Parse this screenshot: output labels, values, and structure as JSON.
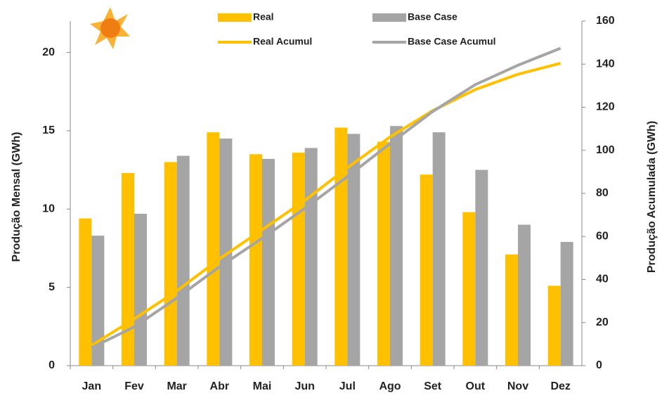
{
  "chart_data": {
    "type": "bar_line",
    "categories": [
      "Jan",
      "Fev",
      "Mar",
      "Abr",
      "Mai",
      "Jun",
      "Jul",
      "Ago",
      "Set",
      "Out",
      "Nov",
      "Dez"
    ],
    "series": [
      {
        "name": "Real",
        "kind": "bar",
        "color": "#ffc000",
        "values": [
          9.4,
          12.3,
          13.0,
          14.9,
          13.5,
          13.6,
          15.2,
          14.3,
          12.2,
          9.8,
          7.1,
          5.1
        ]
      },
      {
        "name": "Base Case",
        "kind": "bar",
        "color": "#a5a5a5",
        "values": [
          8.3,
          9.7,
          13.4,
          14.5,
          13.2,
          13.9,
          14.8,
          15.3,
          14.9,
          12.5,
          9.0,
          7.9
        ]
      },
      {
        "name": "Real Acumul",
        "kind": "line",
        "axis": "y2",
        "color": "#ffc000",
        "values": [
          9.4,
          21.7,
          34.7,
          49.6,
          63.1,
          76.7,
          91.9,
          106.2,
          118.4,
          128.2,
          135.3,
          140.4
        ]
      },
      {
        "name": "Base Case Acumul",
        "kind": "line",
        "axis": "y2",
        "color": "#a5a5a5",
        "values": [
          8.3,
          18.0,
          31.4,
          45.9,
          59.1,
          73.0,
          87.8,
          103.1,
          118.0,
          130.5,
          139.5,
          147.4
        ]
      }
    ],
    "ylabel": "Produção Mensal (GWh)",
    "y2label": "Produção Acumulada (GWh)",
    "ylim": [
      0,
      22
    ],
    "yticks": [
      0,
      5,
      10,
      15,
      20
    ],
    "y2lim": [
      0,
      160
    ],
    "y2ticks": [
      0,
      20,
      40,
      60,
      80,
      100,
      120,
      140,
      160
    ]
  }
}
